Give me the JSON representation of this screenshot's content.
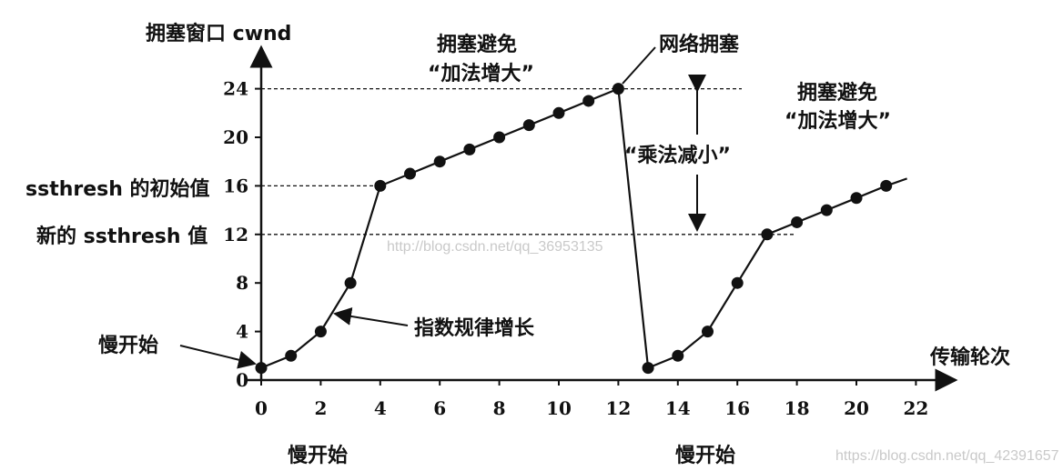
{
  "chart_data": {
    "type": "line",
    "title": "",
    "ylabel": "拥塞窗口 cwnd",
    "xlabel": "传输轮次",
    "xlim": [
      0,
      22
    ],
    "ylim": [
      0,
      24
    ],
    "x_ticks": [
      "0",
      "2",
      "4",
      "6",
      "8",
      "10",
      "12",
      "14",
      "16",
      "18",
      "20",
      "22"
    ],
    "y_ticks": [
      "0",
      "4",
      "8",
      "12",
      "16",
      "20",
      "24"
    ],
    "series": [
      {
        "points": [
          [
            0,
            1
          ],
          [
            1,
            2
          ],
          [
            2,
            4
          ],
          [
            3,
            8
          ],
          [
            4,
            16
          ],
          [
            5,
            17
          ],
          [
            6,
            18
          ],
          [
            7,
            19
          ],
          [
            8,
            20
          ],
          [
            9,
            21
          ],
          [
            10,
            22
          ],
          [
            11,
            23
          ],
          [
            12,
            24
          ]
        ]
      },
      {
        "points": [
          [
            13,
            1
          ],
          [
            14,
            2
          ],
          [
            15,
            4
          ],
          [
            16,
            8
          ],
          [
            17,
            12
          ],
          [
            18,
            13
          ],
          [
            19,
            14
          ],
          [
            20,
            15
          ],
          [
            21,
            16
          ]
        ]
      }
    ],
    "reference_lines": [
      {
        "y": 24
      },
      {
        "y": 16,
        "label": "ssthresh 的初始值"
      },
      {
        "y": 12,
        "label": "新的 ssthresh 值"
      }
    ],
    "annotations": {
      "ca1": [
        "拥塞避免",
        "“加法增大”"
      ],
      "ca2": [
        "拥塞避免",
        "“加法增大”"
      ],
      "congestion": "网络拥塞",
      "md": "“乘法减小”",
      "exp": "指数规律增长",
      "ss_left": "慢开始",
      "ss1": "慢开始",
      "ss2": "慢开始"
    },
    "watermarks": [
      "http://blog.csdn.net/qq_36953135",
      "https://blog.csdn.net/qq_42391657"
    ]
  }
}
